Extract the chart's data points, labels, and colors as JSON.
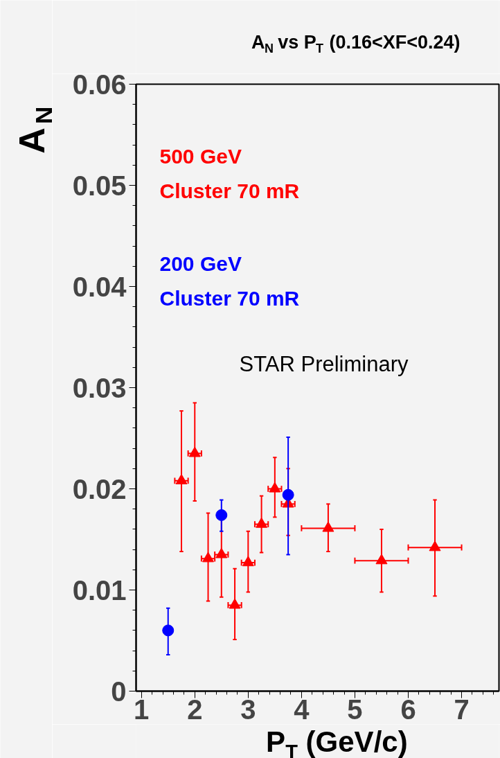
{
  "chart_data": {
    "type": "scatter",
    "title": "A$_{N}$ vs P$_{T}$ (0.16<XF<0.24)",
    "xlabel": "P$_{T}$ (GeV/c)",
    "ylabel": "A$_{N}$",
    "xlim": [
      0.9,
      7.7
    ],
    "ylim": [
      0,
      0.06
    ],
    "xticks": [
      1,
      2,
      3,
      4,
      5,
      6,
      7
    ],
    "yticks": [
      0,
      0.01,
      0.02,
      0.03,
      0.04,
      0.05,
      0.06
    ],
    "grid": false,
    "legend": "top left",
    "annotations": [
      "STAR Preliminary"
    ],
    "series": [
      {
        "name": "500 GeV\nCluster 70 mR",
        "color": "#ff0000",
        "marker": "triangle",
        "x": [
          1.75,
          2.0,
          2.25,
          2.5,
          2.75,
          3.0,
          3.25,
          3.5,
          3.75,
          4.5,
          5.5,
          6.5
        ],
        "values": [
          0.0208,
          0.0235,
          0.0131,
          0.0135,
          0.0085,
          0.0127,
          0.0165,
          0.02,
          0.0185,
          0.0161,
          0.0129,
          0.0142
        ],
        "errors": [
          [
            0.0138,
            0.0277
          ],
          [
            0.0188,
            0.0285
          ],
          [
            0.0089,
            0.0176
          ],
          [
            0.0093,
            0.0178
          ],
          [
            0.0051,
            0.0121
          ],
          [
            0.0098,
            0.0158
          ],
          [
            0.0137,
            0.0193
          ],
          [
            0.0172,
            0.0231
          ],
          [
            0.0154,
            0.022
          ],
          [
            0.0138,
            0.0185
          ],
          [
            0.0098,
            0.016
          ],
          [
            0.0094,
            0.0189
          ]
        ],
        "xerrors": [
          0.125,
          0.125,
          0.125,
          0.125,
          0.125,
          0.125,
          0.125,
          0.125,
          0.125,
          0.5,
          0.5,
          0.5
        ]
      },
      {
        "name": "200 GeV\nCluster 70 mR",
        "color": "#0000ff",
        "marker": "circle",
        "x": [
          1.5,
          2.5,
          3.75
        ],
        "values": [
          0.006,
          0.0174,
          0.0194
        ],
        "errors": [
          [
            0.0036,
            0.0082
          ],
          [
            0.0158,
            0.0189
          ],
          [
            0.0135,
            0.0251
          ]
        ]
      }
    ]
  }
}
